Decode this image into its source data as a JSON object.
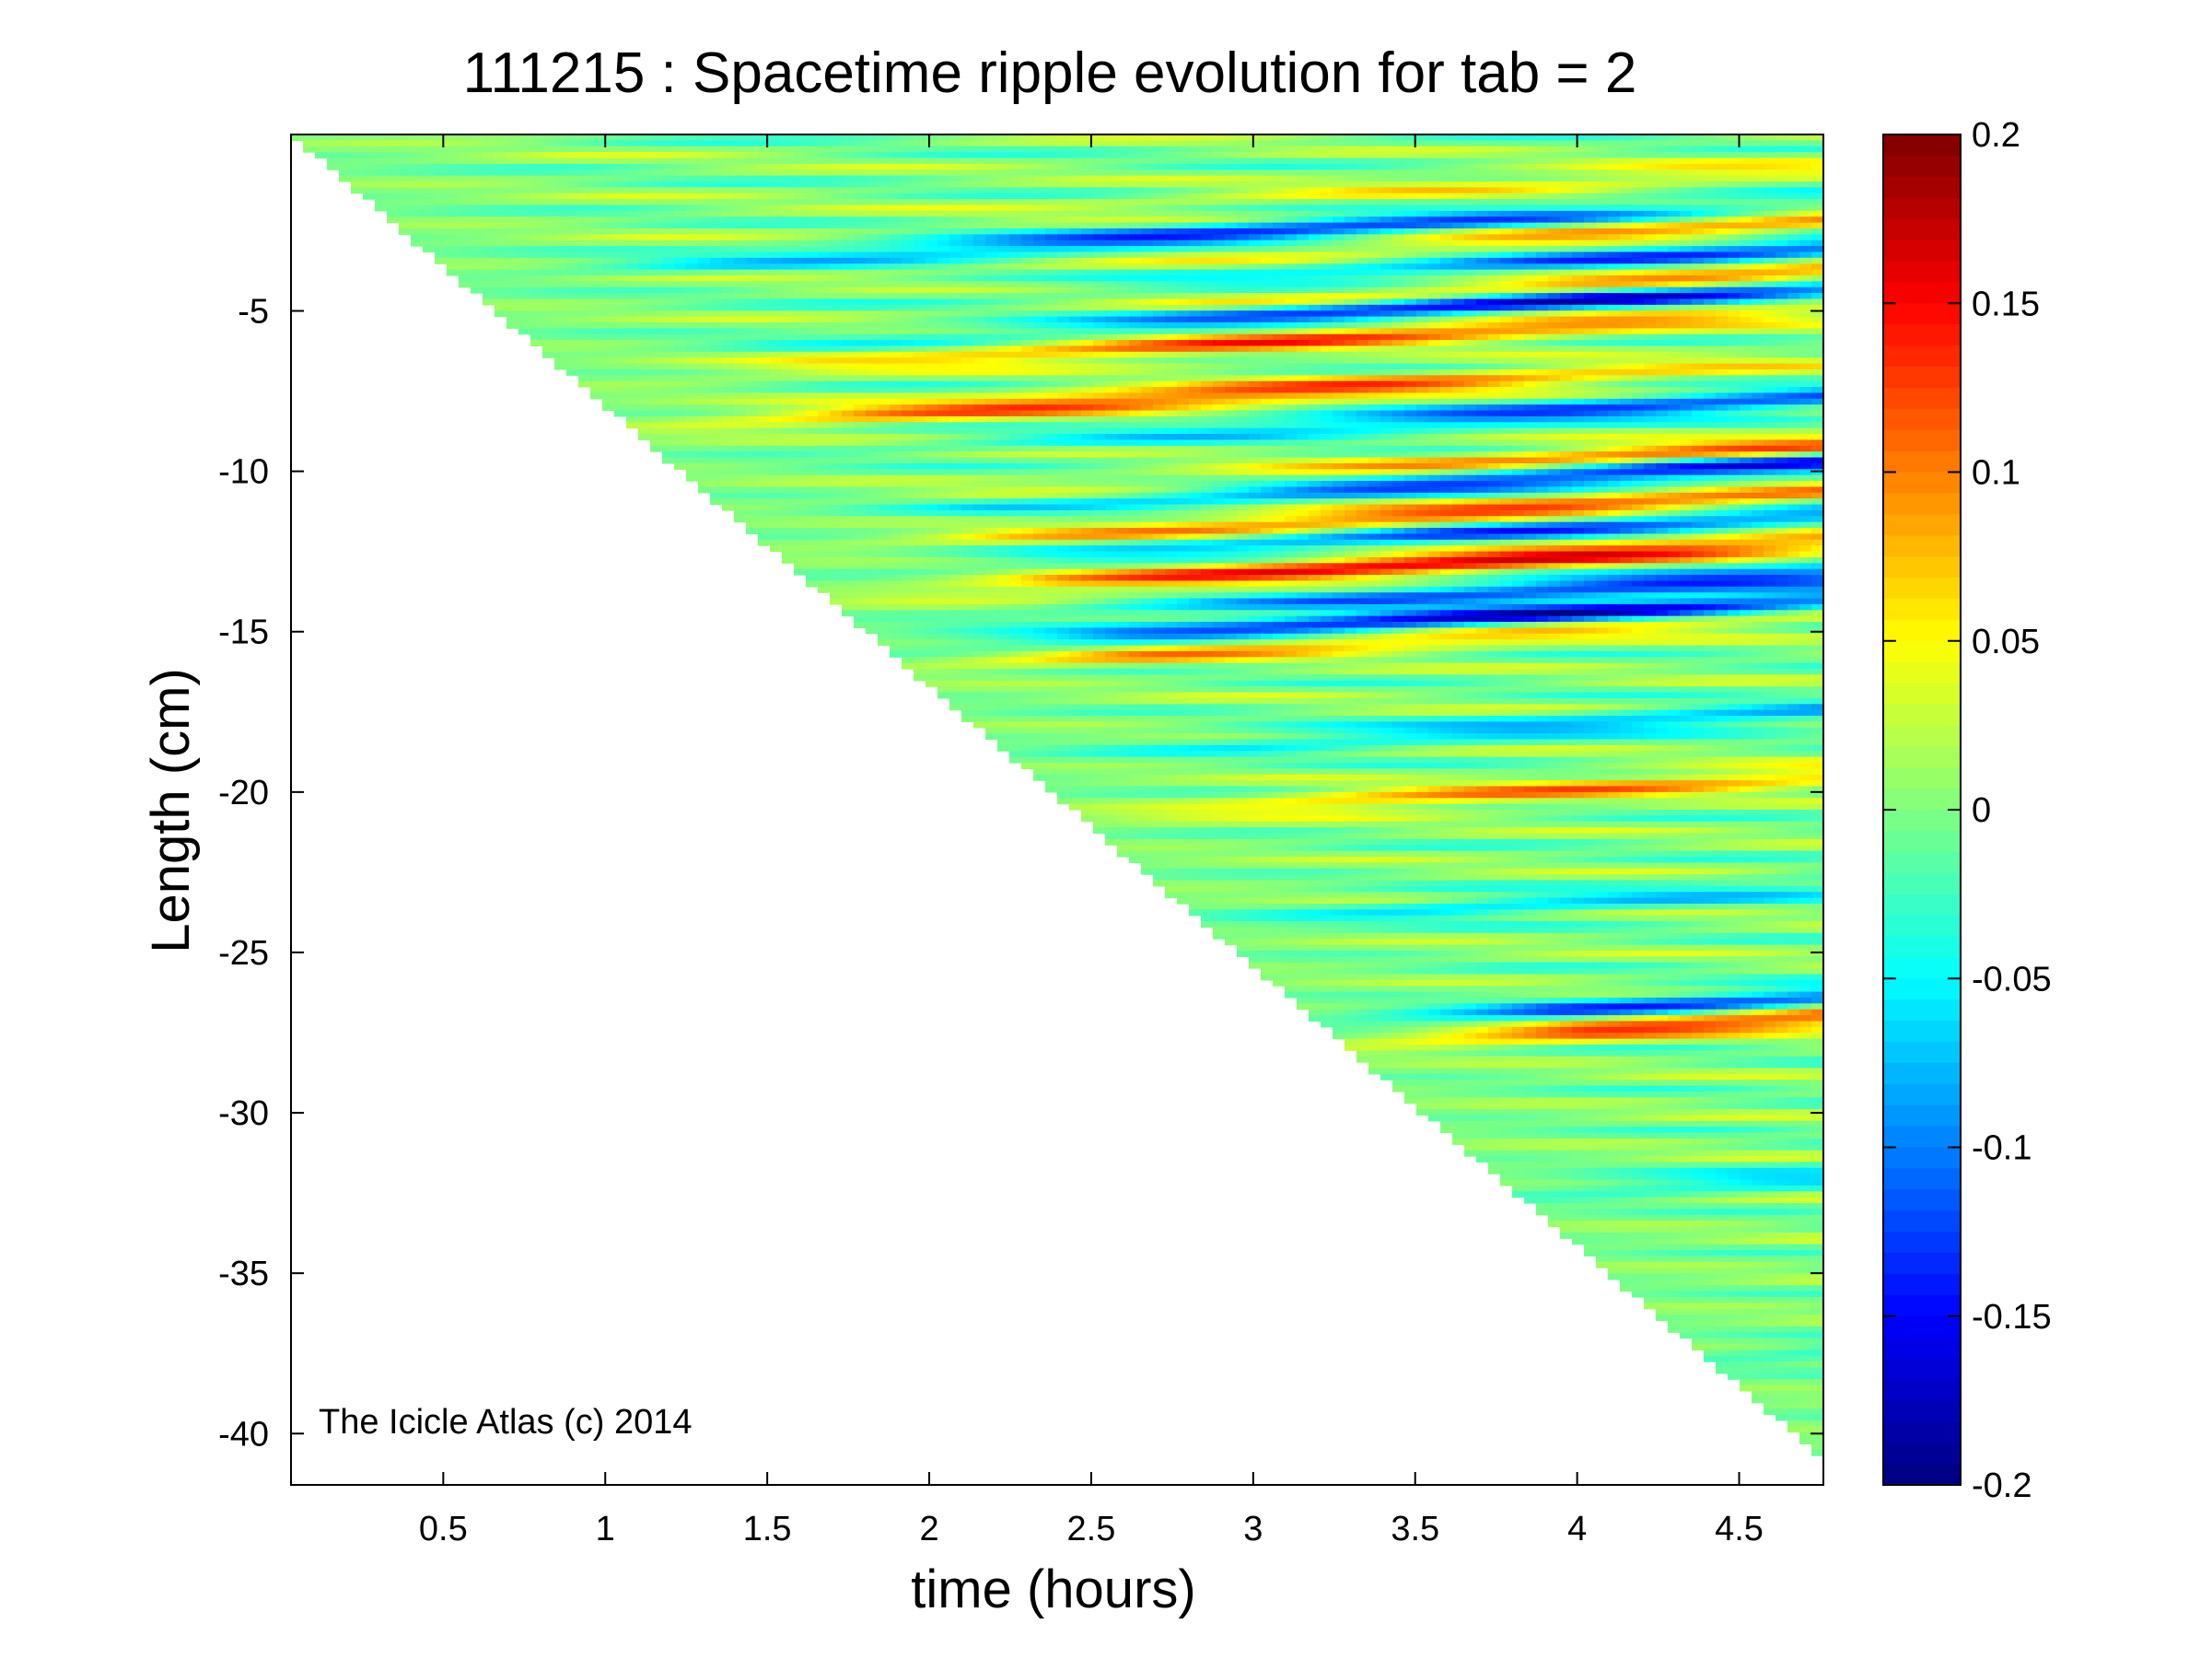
{
  "figure": {
    "title": "111215 : Spacetime ripple evolution for tab = 2",
    "watermark": "The Icicle Atlas (c) 2014"
  },
  "chart_data": {
    "type": "heatmap",
    "title": "111215 : Spacetime ripple evolution for tab = 2",
    "xlabel": "time (hours)",
    "ylabel": "Length (cm)",
    "xlim": [
      0.03,
      4.76
    ],
    "ylim": [
      -41.6,
      0.5
    ],
    "xticks": [
      0.5,
      1,
      1.5,
      2,
      2.5,
      3,
      3.5,
      4,
      4.5
    ],
    "xtick_labels": [
      "0.5",
      "1",
      "1.5",
      "2",
      "2.5",
      "3",
      "3.5",
      "4",
      "4.5"
    ],
    "yticks": [
      -5,
      -10,
      -15,
      -20,
      -25,
      -30,
      -35,
      -40
    ],
    "ytick_labels": [
      "-5",
      "-10",
      "-15",
      "-20",
      "-25",
      "-30",
      "-35",
      "-40"
    ],
    "colormap": "jet",
    "clim": [
      -0.2,
      0.2
    ],
    "colorbar_ticks": [
      0.2,
      0.15,
      0.1,
      0.05,
      0,
      -0.05,
      -0.1,
      -0.15,
      -0.2
    ],
    "colorbar_tick_labels": [
      "0.2",
      "0.15",
      "0.1",
      "0.05",
      "0",
      "-0.05",
      "-0.1",
      "-0.15",
      "-0.2"
    ],
    "grid": false,
    "data_boundary": {
      "description": "data present only where length >= growth front; front grows linearly with time",
      "front_start": [
        0.03,
        0.5
      ],
      "front_end": [
        4.76,
        -40.8
      ]
    },
    "ripple_bands": [
      {
        "y": -0.5,
        "peak_t": 4.2,
        "amp": 0.05
      },
      {
        "y": -1.6,
        "peak_t": 3.0,
        "amp": -0.13
      },
      {
        "y": -2.2,
        "peak_t": 4.5,
        "amp": 0.09
      },
      {
        "y": -3.0,
        "peak_t": 4.6,
        "amp": -0.12
      },
      {
        "y": -3.8,
        "peak_t": 4.7,
        "amp": 0.14
      },
      {
        "y": -4.2,
        "peak_t": 4.0,
        "amp": -0.18
      },
      {
        "y": -5.0,
        "peak_t": 3.3,
        "amp": 0.12
      },
      {
        "y": -6.6,
        "peak_t": 2.8,
        "amp": 0.13
      },
      {
        "y": -7.7,
        "peak_t": 4.2,
        "amp": -0.12
      },
      {
        "y": -9.2,
        "peak_t": 4.5,
        "amp": 0.12
      },
      {
        "y": -9.7,
        "peak_t": 4.2,
        "amp": -0.16
      },
      {
        "y": -10.7,
        "peak_t": 3.8,
        "amp": 0.13
      },
      {
        "y": -11.3,
        "peak_t": 4.0,
        "amp": -0.12
      },
      {
        "y": -12.2,
        "peak_t": 3.7,
        "amp": 0.16
      },
      {
        "y": -13.2,
        "peak_t": 4.3,
        "amp": -0.13
      },
      {
        "y": -14.0,
        "peak_t": 3.8,
        "amp": -0.17
      },
      {
        "y": -14.5,
        "peak_t": 3.2,
        "amp": 0.1
      },
      {
        "y": -17.5,
        "peak_t": 4.2,
        "amp": -0.08
      },
      {
        "y": -19.5,
        "peak_t": 4.0,
        "amp": 0.09
      },
      {
        "y": -23.0,
        "peak_t": 4.0,
        "amp": -0.06
      },
      {
        "y": -26.4,
        "peak_t": 4.5,
        "amp": -0.12
      },
      {
        "y": -27.0,
        "peak_t": 4.5,
        "amp": 0.14
      },
      {
        "y": -32.0,
        "peak_t": 4.6,
        "amp": -0.06
      },
      {
        "y": -37.5,
        "peak_t": 4.7,
        "amp": -0.05
      }
    ]
  }
}
